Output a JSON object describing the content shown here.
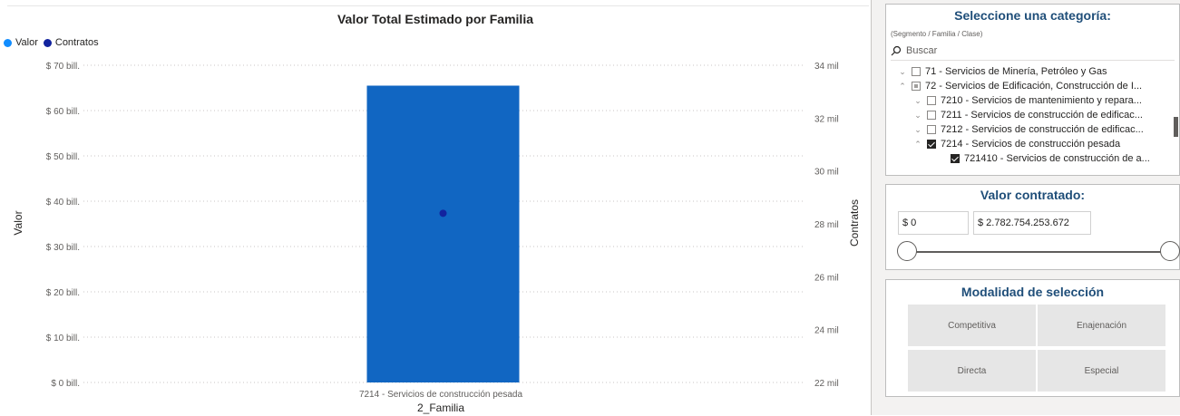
{
  "chart_data": {
    "type": "bar",
    "title": "Valor Total Estimado por Familia",
    "legend": [
      {
        "name": "Valor",
        "color": "#118dff"
      },
      {
        "name": "Contratos",
        "color": "#12239e"
      }
    ],
    "legend_position": "top-left",
    "categories": [
      "7214 - Servicios de construcción pesada"
    ],
    "series": [
      {
        "name": "Valor",
        "type": "bar",
        "axis": "left",
        "values": [
          65.5
        ],
        "color": "#1166c2"
      },
      {
        "name": "Contratos",
        "type": "scatter",
        "axis": "right",
        "values": [
          28.4
        ],
        "color": "#12239e"
      }
    ],
    "xlabel": "2_Familia",
    "ylabel": "Valor",
    "ylabel_right": "Contratos",
    "ylim": [
      0,
      70
    ],
    "ylim_right": [
      22,
      34
    ],
    "y_ticks": [
      {
        "v": 0,
        "label": "$ 0 bill."
      },
      {
        "v": 10,
        "label": "$ 10 bill."
      },
      {
        "v": 20,
        "label": "$ 20 bill."
      },
      {
        "v": 30,
        "label": "$ 30 bill."
      },
      {
        "v": 40,
        "label": "$ 40 bill."
      },
      {
        "v": 50,
        "label": "$ 50 bill."
      },
      {
        "v": 60,
        "label": "$ 60 bill."
      },
      {
        "v": 70,
        "label": "$ 70 bill."
      }
    ],
    "y_right_ticks": [
      {
        "v": 22,
        "label": "22 mil"
      },
      {
        "v": 24,
        "label": "24 mil"
      },
      {
        "v": 26,
        "label": "26 mil"
      },
      {
        "v": 28,
        "label": "28 mil"
      },
      {
        "v": 30,
        "label": "30 mil"
      },
      {
        "v": 32,
        "label": "32 mil"
      },
      {
        "v": 34,
        "label": "34 mil"
      }
    ],
    "grid": true
  },
  "category_slicer": {
    "title": "Seleccione una categoría:",
    "subtitle": "(Segmento / Familia / Clase)",
    "search_placeholder": "Buscar",
    "items": [
      {
        "label": "71 - Servicios de Minería, Petróleo y Gas",
        "state": "unchecked",
        "chevron": "down",
        "level": 0
      },
      {
        "label": "72 - Servicios de Edificación, Construcción de I...",
        "state": "partial",
        "chevron": "up",
        "level": 0
      },
      {
        "label": "7210 - Servicios de mantenimiento y repara...",
        "state": "unchecked",
        "chevron": "down",
        "level": 1
      },
      {
        "label": "7211 - Servicios de construcción de edificac...",
        "state": "unchecked",
        "chevron": "down",
        "level": 1
      },
      {
        "label": "7212 - Servicios de construcción de edificac...",
        "state": "unchecked",
        "chevron": "down",
        "level": 1
      },
      {
        "label": "7214 - Servicios de construcción pesada",
        "state": "checked",
        "chevron": "up",
        "level": 1
      },
      {
        "label": "721410 - Servicios de construcción de a...",
        "state": "checked",
        "chevron": "",
        "level": 2
      }
    ]
  },
  "value_slicer": {
    "title": "Valor contratado:",
    "min_value": "$ 0",
    "max_value": "$ 2.782.754.253.672"
  },
  "modality_slicer": {
    "title": "Modalidad de selección",
    "options": [
      "Competitiva",
      "Enajenación",
      "Directa",
      "Especial"
    ]
  }
}
